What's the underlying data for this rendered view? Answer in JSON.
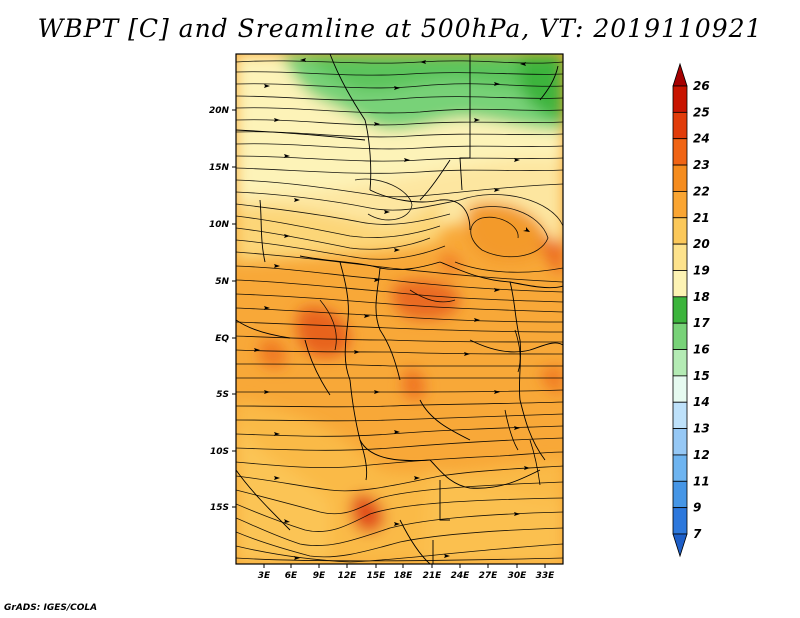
{
  "title": "WBPT [C] and Sreamline at 500hPa, VT: 2019110921",
  "credit": "GrADS: IGES/COLA",
  "map": {
    "variable": "Wet-bulb potential temperature (WBPT) with streamlines",
    "level": "500hPa",
    "valid_time": "2019110921",
    "lat_labels": [
      "20N",
      "15N",
      "10N",
      "5N",
      "EQ",
      "5S",
      "10S",
      "15S"
    ],
    "lon_labels": [
      "3E",
      "6E",
      "9E",
      "12E",
      "15E",
      "18E",
      "21E",
      "24E",
      "27E",
      "30E",
      "33E"
    ]
  },
  "colorbar": {
    "levels": [
      "26",
      "25",
      "24",
      "23",
      "22",
      "21",
      "20",
      "19",
      "18",
      "17",
      "16",
      "15",
      "14",
      "13",
      "12",
      "11",
      "9",
      "7"
    ],
    "colors": [
      "#a50000",
      "#c81400",
      "#e13c0a",
      "#f06414",
      "#f58c1e",
      "#faa532",
      "#fbc85a",
      "#fde28c",
      "#fdf3b4",
      "#3cb43c",
      "#78d278",
      "#b4ebb4",
      "#e6faf0",
      "#bee1fa",
      "#96c8f5",
      "#6eb4f0",
      "#4696e6",
      "#2d78dc",
      "#1e5fc8"
    ]
  }
}
